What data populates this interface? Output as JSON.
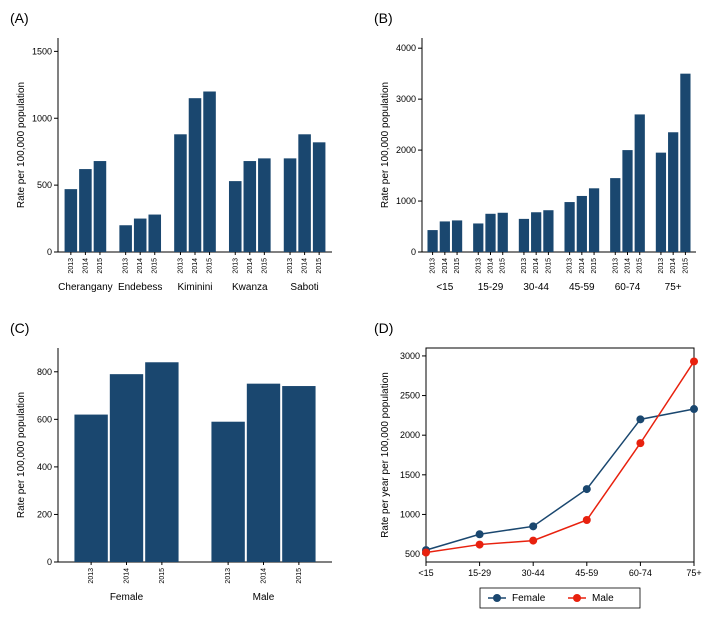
{
  "figure": {
    "background": "#ffffff",
    "panel_bg": "#ffffff",
    "bar_color": "#1a476f",
    "axis_color": "#000000",
    "line_colors": {
      "female": "#1a476f",
      "male": "#e8210e"
    },
    "marker_size": 4,
    "line_width": 1.5
  },
  "panelA": {
    "label": "(A)",
    "type": "bar",
    "ylabel": "Rate per 100,000 population",
    "ylim": [
      0,
      1600
    ],
    "yticks": [
      0,
      500,
      1000,
      1500
    ],
    "years": [
      "2013",
      "2014",
      "2015"
    ],
    "groups": [
      "Cherangany",
      "Endebess",
      "Kiminini",
      "Kwanza",
      "Saboti"
    ],
    "values": [
      [
        470,
        620,
        680
      ],
      [
        200,
        250,
        280
      ],
      [
        880,
        1150,
        1200
      ],
      [
        530,
        680,
        700
      ],
      [
        700,
        880,
        820
      ]
    ]
  },
  "panelB": {
    "label": "(B)",
    "type": "bar",
    "ylabel": "Rate per 100,000 population",
    "ylim": [
      0,
      4200
    ],
    "yticks": [
      0,
      1000,
      2000,
      3000,
      4000
    ],
    "years": [
      "2013",
      "2014",
      "2015"
    ],
    "groups": [
      "<15",
      "15-29",
      "30-44",
      "45-59",
      "60-74",
      "75+"
    ],
    "values": [
      [
        430,
        600,
        620
      ],
      [
        560,
        750,
        770
      ],
      [
        650,
        780,
        820
      ],
      [
        980,
        1100,
        1250
      ],
      [
        1450,
        2000,
        2700
      ],
      [
        1950,
        2350,
        3500
      ]
    ]
  },
  "panelC": {
    "label": "(C)",
    "type": "bar",
    "ylabel": "Rate per 100,000 population",
    "ylim": [
      0,
      900
    ],
    "yticks": [
      0,
      200,
      400,
      600,
      800
    ],
    "years": [
      "2013",
      "2014",
      "2015"
    ],
    "groups": [
      "Female",
      "Male"
    ],
    "values": [
      [
        620,
        790,
        840
      ],
      [
        590,
        750,
        740
      ]
    ]
  },
  "panelD": {
    "label": "(D)",
    "type": "line",
    "ylabel": "Rate per year per 100,000 population",
    "ylim": [
      400,
      3100
    ],
    "yticks": [
      500,
      1000,
      1500,
      2000,
      2500,
      3000
    ],
    "x_categories": [
      "<15",
      "15-29",
      "30-44",
      "45-59",
      "60-74",
      "75+"
    ],
    "series": [
      {
        "name": "Female",
        "color_key": "female",
        "values": [
          550,
          750,
          850,
          1320,
          2200,
          2330
        ]
      },
      {
        "name": "Male",
        "color_key": "male",
        "values": [
          520,
          620,
          670,
          930,
          1900,
          2930
        ]
      }
    ],
    "legend": {
      "labels": [
        "Female",
        "Male"
      ]
    }
  }
}
